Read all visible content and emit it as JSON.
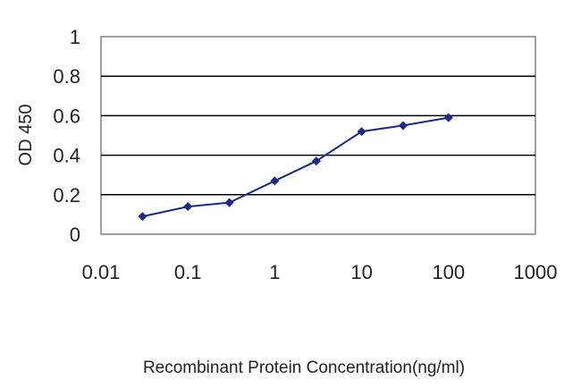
{
  "chart_data": {
    "type": "line",
    "title": "",
    "xlabel": "Recombinant Protein Concentration(ng/ml)",
    "ylabel": "OD 450",
    "x_scale": "log",
    "xlim": [
      0.01,
      1000
    ],
    "ylim": [
      0,
      1
    ],
    "x_ticks": [
      0.01,
      0.1,
      1,
      10,
      100,
      1000
    ],
    "x_tick_labels": [
      "0.01",
      "0.1",
      "1",
      "10",
      "100",
      "1000"
    ],
    "y_ticks": [
      0,
      0.2,
      0.4,
      0.6,
      0.8,
      1
    ],
    "y_tick_labels": [
      "0",
      "0.2",
      "0.4",
      "0.6",
      "0.8",
      "1"
    ],
    "grid": "horizontal",
    "legend": "none",
    "series": [
      {
        "color": "#1a2a8a",
        "marker": "diamond",
        "x": [
          0.03,
          0.1,
          0.3,
          1,
          3,
          10,
          30,
          100
        ],
        "y": [
          0.09,
          0.14,
          0.16,
          0.27,
          0.37,
          0.52,
          0.55,
          0.59
        ]
      }
    ]
  }
}
